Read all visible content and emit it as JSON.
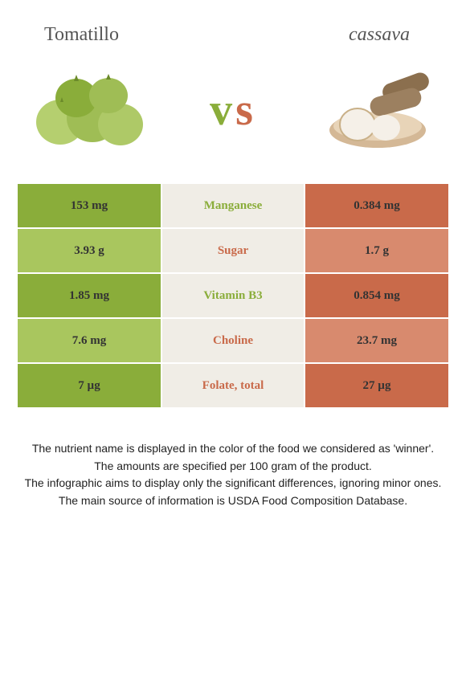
{
  "header": {
    "left_title": "Tomatillo",
    "right_title": "cassava"
  },
  "vs": {
    "v": "v",
    "s": "s"
  },
  "colors": {
    "left_food": "#8aad3a",
    "left_food_light": "#a9c65e",
    "right_food": "#c96a4a",
    "right_food_light": "#d88a6e",
    "neutral_bg": "#f0ede6",
    "white": "#ffffff"
  },
  "table": {
    "rows": [
      {
        "nutrient": "Manganese",
        "left": "153 mg",
        "right": "0.384 mg",
        "winner": "left",
        "shade": "dark"
      },
      {
        "nutrient": "Sugar",
        "left": "3.93 g",
        "right": "1.7 g",
        "winner": "right",
        "shade": "light"
      },
      {
        "nutrient": "Vitamin B3",
        "left": "1.85 mg",
        "right": "0.854 mg",
        "winner": "left",
        "shade": "dark"
      },
      {
        "nutrient": "Choline",
        "left": "7.6 mg",
        "right": "23.7 mg",
        "winner": "right",
        "shade": "light"
      },
      {
        "nutrient": "Folate, total",
        "left": "7 µg",
        "right": "27 µg",
        "winner": "right",
        "shade": "dark"
      }
    ]
  },
  "footer": {
    "line1": "The nutrient name is displayed in the color of the food we considered as 'winner'.",
    "line2": "The amounts are specified per 100 gram of the product.",
    "line3": "The infographic aims to display only the significant differences, ignoring minor ones.",
    "line4": "The main source of information is USDA Food Composition Database."
  }
}
